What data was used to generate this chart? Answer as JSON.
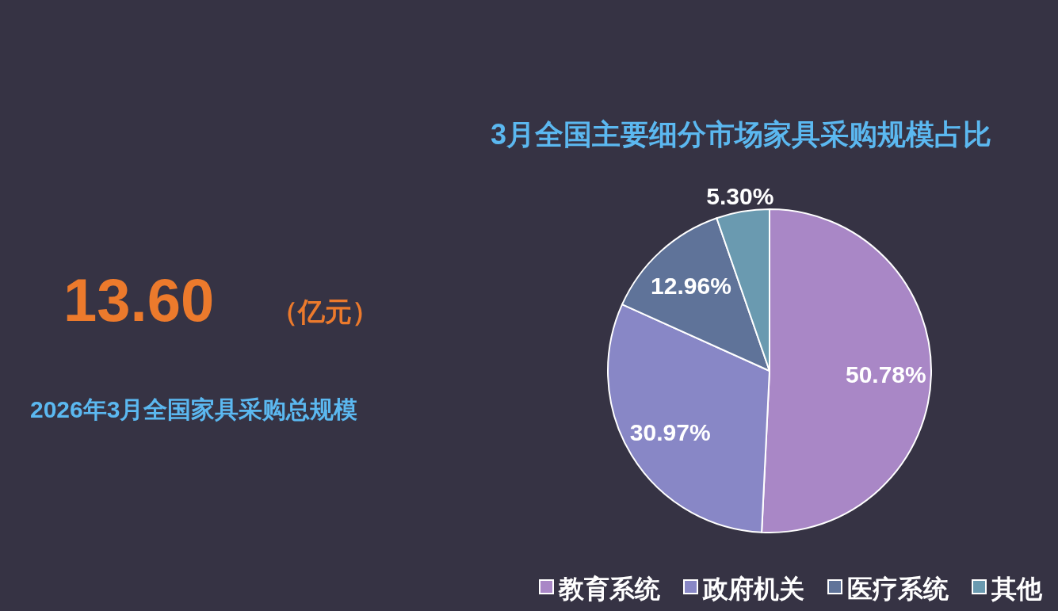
{
  "chart_data": [
    {
      "type": "other",
      "annotations": [
        "13.60",
        "（亿元）",
        "2026年3月全国家具采购总规模"
      ]
    },
    {
      "type": "pie",
      "title": "3月全国主要细分市场家具采购规模占比",
      "categories": [
        "教育系统",
        "政府机关",
        "医疗系统",
        "其他"
      ],
      "values": [
        50.78,
        30.97,
        12.96,
        5.3
      ],
      "value_labels": [
        "50.78%",
        "30.97%",
        "12.96%",
        "5.30%"
      ],
      "colors": [
        "#a987c6",
        "#8887c6",
        "#5f7399",
        "#6a9ab0"
      ],
      "legend": "bottom right"
    }
  ]
}
